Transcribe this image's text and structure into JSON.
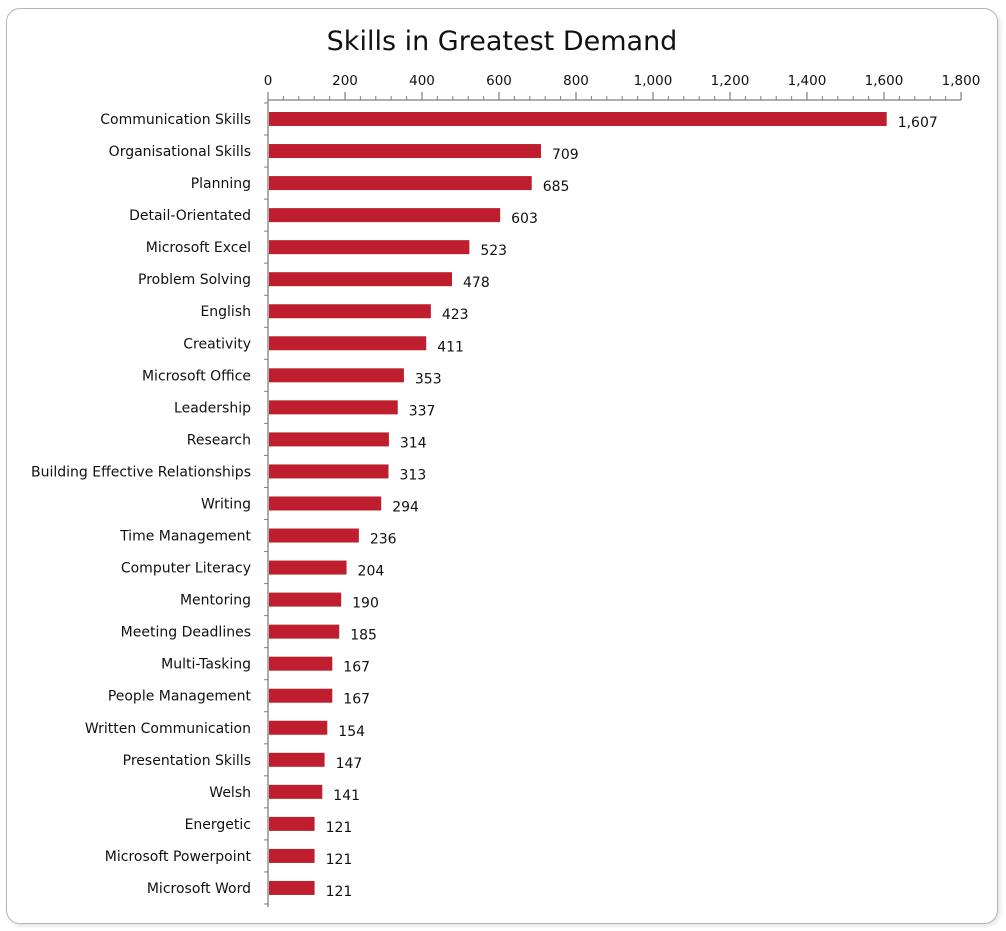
{
  "chart_data": {
    "type": "bar",
    "orientation": "horizontal",
    "title": "Skills in Greatest Demand",
    "xlabel": "",
    "ylabel": "",
    "xlim": [
      0,
      1800
    ],
    "x_ticks": [
      0,
      200,
      400,
      600,
      800,
      1000,
      1200,
      1400,
      1600,
      1800
    ],
    "x_tick_labels": [
      "0",
      "200",
      "400",
      "600",
      "800",
      "1,000",
      "1,200",
      "1,400",
      "1,600",
      "1,800"
    ],
    "axis_position": "top",
    "grid": false,
    "legend": "none",
    "bar_color": "#be1e2d",
    "categories": [
      "Communication Skills",
      "Organisational Skills",
      "Planning",
      "Detail-Orientated",
      "Microsoft Excel",
      "Problem Solving",
      "English",
      "Creativity",
      "Microsoft Office",
      "Leadership",
      "Research",
      "Building Effective Relationships",
      "Writing",
      "Time Management",
      "Computer Literacy",
      "Mentoring",
      "Meeting Deadlines",
      "Multi-Tasking",
      "People Management",
      "Written Communication",
      "Presentation Skills",
      "Welsh",
      "Energetic",
      "Microsoft Powerpoint",
      "Microsoft Word"
    ],
    "values": [
      1607,
      709,
      685,
      603,
      523,
      478,
      423,
      411,
      353,
      337,
      314,
      313,
      294,
      236,
      204,
      190,
      185,
      167,
      167,
      154,
      147,
      141,
      121,
      121,
      121
    ],
    "value_labels": [
      "1,607",
      "709",
      "685",
      "603",
      "523",
      "478",
      "423",
      "411",
      "353",
      "337",
      "314",
      "313",
      "294",
      "236",
      "204",
      "190",
      "185",
      "167",
      "167",
      "154",
      "147",
      "141",
      "121",
      "121",
      "121"
    ]
  }
}
